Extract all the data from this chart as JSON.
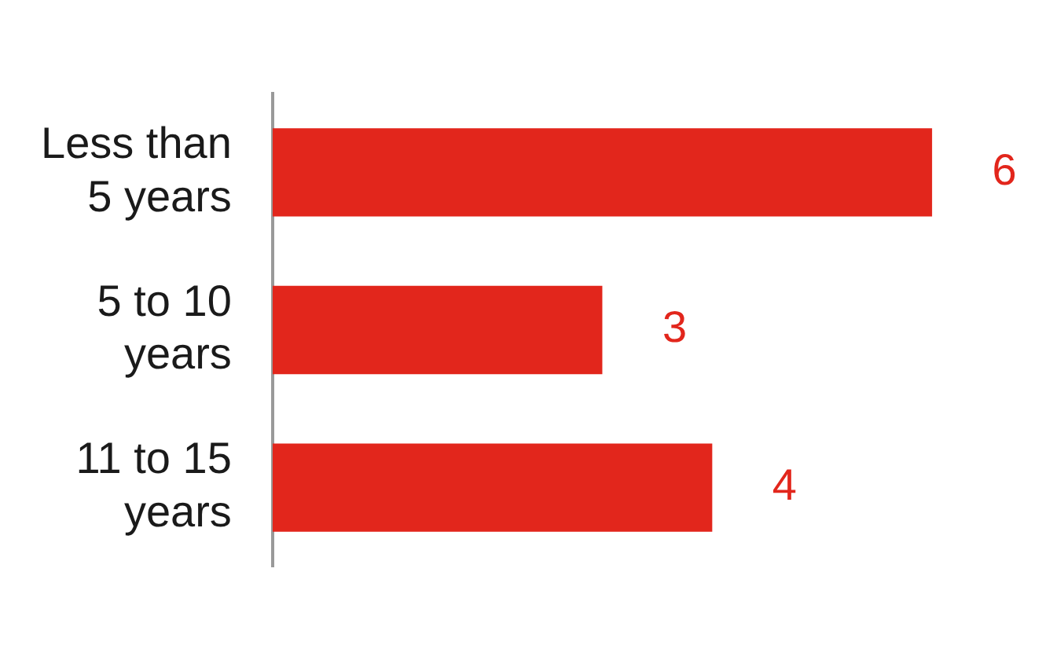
{
  "chart_data": {
    "type": "bar",
    "orientation": "horizontal",
    "categories": [
      "Less than 5 years",
      "5 to 10 years",
      "11 to 15 years"
    ],
    "values": [
      6,
      3,
      4
    ],
    "color": "#e2261c",
    "data_labels": true,
    "grid": false,
    "legend": false,
    "tick_labels": "y"
  }
}
